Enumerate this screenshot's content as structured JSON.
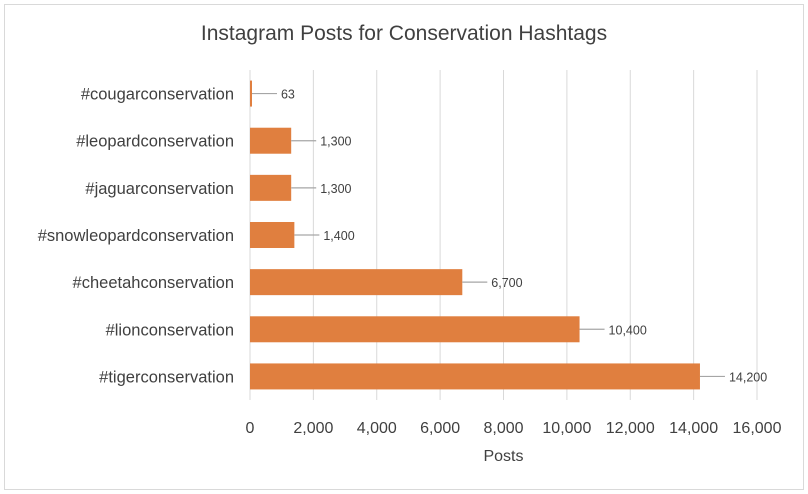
{
  "chart_data": {
    "type": "bar",
    "orientation": "horizontal",
    "title": "Instagram Posts for Conservation  Hashtags",
    "xlabel": "Posts",
    "ylabel": "",
    "categories": [
      "#cougarconservation",
      "#leopardconservation",
      "#jaguarconservation",
      "#snowleopardconservation",
      "#cheetahconservation",
      "#lionconservation",
      "#tigerconservation"
    ],
    "values": [
      63,
      1300,
      1300,
      1400,
      6700,
      10400,
      14200
    ],
    "data_labels": [
      "63",
      "1,300",
      "1,300",
      "1,400",
      "6,700",
      "10,400",
      "14,200"
    ],
    "xlim": [
      0,
      16000
    ],
    "x_ticks": [
      0,
      2000,
      4000,
      6000,
      8000,
      10000,
      12000,
      14000,
      16000
    ],
    "x_tick_labels": [
      "0",
      "2,000",
      "4,000",
      "6,000",
      "8,000",
      "10,000",
      "12,000",
      "14,000",
      "16,000"
    ],
    "grid": true,
    "legend": "none",
    "colors": {
      "bar": "#e07f3f",
      "grid": "#d9d9d9",
      "leader": "#a6a6a6",
      "text": "#404040"
    }
  }
}
